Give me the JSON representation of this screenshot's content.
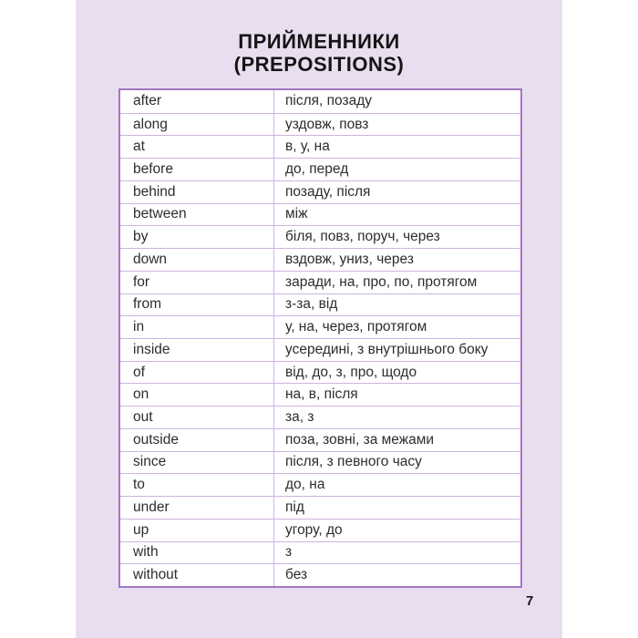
{
  "page": {
    "title_line1": "ПРИЙМЕННИКИ",
    "title_line2": "(PREPOSITIONS)",
    "page_number": "7"
  },
  "table": {
    "columns": [
      "english_preposition",
      "ukrainian_translation"
    ],
    "rows": [
      {
        "en": "after",
        "uk": "після, позаду"
      },
      {
        "en": "along",
        "uk": "уздовж, повз"
      },
      {
        "en": "at",
        "uk": "в, у, на"
      },
      {
        "en": "before",
        "uk": "до, перед"
      },
      {
        "en": "behind",
        "uk": "позаду, після"
      },
      {
        "en": "between",
        "uk": "між"
      },
      {
        "en": "by",
        "uk": "біля, повз, поруч, через"
      },
      {
        "en": "down",
        "uk": "вздовж, униз, через"
      },
      {
        "en": "for",
        "uk": "заради, на, про, по, протягом"
      },
      {
        "en": "from",
        "uk": "з-за, від"
      },
      {
        "en": "in",
        "uk": "у, на, через, протягом"
      },
      {
        "en": "inside",
        "uk": "усередині, з внутрішнього боку"
      },
      {
        "en": "of",
        "uk": "від, до, з, про, щодо"
      },
      {
        "en": "on",
        "uk": "на, в, після"
      },
      {
        "en": "out",
        "uk": "за, з"
      },
      {
        "en": "outside",
        "uk": "поза, зовні, за межами"
      },
      {
        "en": "since",
        "uk": "після, з певного часу"
      },
      {
        "en": "to",
        "uk": "до, на"
      },
      {
        "en": "under",
        "uk": "під"
      },
      {
        "en": "up",
        "uk": "угору, до"
      },
      {
        "en": "with",
        "uk": "з"
      },
      {
        "en": "without",
        "uk": "без"
      }
    ]
  },
  "colors": {
    "panel_background": "#e8deef",
    "table_outer_border": "#a278bf",
    "table_divider": "#cdb4e0",
    "cell_background": "#ffffff",
    "body_text": "#2d2d2d",
    "title_text": "#151515"
  }
}
